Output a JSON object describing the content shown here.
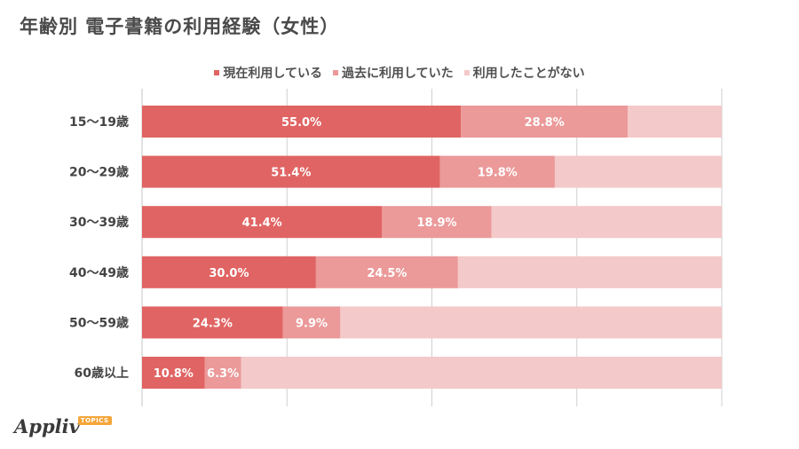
{
  "page": {
    "title": "年齢別 電子書籍の利用経験（女性）"
  },
  "colors": {
    "current": "#e06463",
    "past": "#eb9999",
    "never": "#f4c9c9",
    "axis": "#cfcfcf",
    "label_dark": "#444444",
    "label_light": "#ffffff"
  },
  "chart_data": {
    "type": "bar",
    "orientation": "horizontal",
    "stacked": true,
    "categories": [
      "15〜19歳",
      "20〜29歳",
      "30〜39歳",
      "40〜49歳",
      "50〜59歳",
      "60歳以上"
    ],
    "series": [
      {
        "name": "現在利用している",
        "values": [
          55.0,
          51.4,
          41.4,
          30.0,
          24.3,
          10.8
        ],
        "labels": [
          "55.0%",
          "51.4%",
          "41.4%",
          "30.0%",
          "24.3%",
          "10.8%"
        ]
      },
      {
        "name": "過去に利用していた",
        "values": [
          28.8,
          19.8,
          18.9,
          24.5,
          9.9,
          6.3
        ],
        "labels": [
          "28.8%",
          "19.8%",
          "18.9%",
          "24.5%",
          "9.9%",
          "6.3%"
        ]
      },
      {
        "name": "利用したことがない",
        "values": [
          16.2,
          28.8,
          39.7,
          45.5,
          65.8,
          82.9
        ],
        "labels": []
      }
    ],
    "xlim": [
      0,
      100
    ],
    "grid": true,
    "legend_position": "top"
  },
  "logo": {
    "name": "Appliv",
    "badge": "TOPICS"
  }
}
